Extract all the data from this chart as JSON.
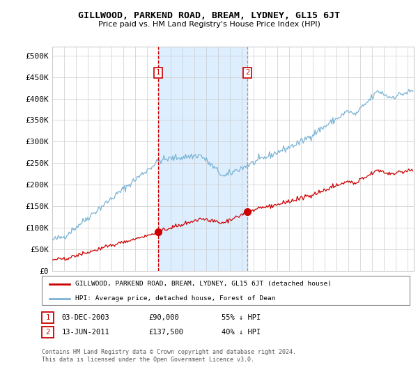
{
  "title": "GILLWOOD, PARKEND ROAD, BREAM, LYDNEY, GL15 6JT",
  "subtitle": "Price paid vs. HM Land Registry's House Price Index (HPI)",
  "ylabel_ticks": [
    "£0",
    "£50K",
    "£100K",
    "£150K",
    "£200K",
    "£250K",
    "£300K",
    "£350K",
    "£400K",
    "£450K",
    "£500K"
  ],
  "ytick_values": [
    0,
    50000,
    100000,
    150000,
    200000,
    250000,
    300000,
    350000,
    400000,
    450000,
    500000
  ],
  "ylim": [
    0,
    520000
  ],
  "xlim_start": 1995.0,
  "xlim_end": 2025.5,
  "transaction1_x": 2003.92,
  "transaction1_y": 90000,
  "transaction1_label": "1",
  "transaction1_date": "03-DEC-2003",
  "transaction1_price": "£90,000",
  "transaction1_hpi": "55% ↓ HPI",
  "transaction2_x": 2011.45,
  "transaction2_y": 137500,
  "transaction2_label": "2",
  "transaction2_date": "13-JUN-2011",
  "transaction2_price": "£137,500",
  "transaction2_hpi": "40% ↓ HPI",
  "hpi_line_color": "#7ab3d4",
  "price_line_color": "#cc0000",
  "background_color": "#ffffff",
  "shaded_region_color": "#ddeeff",
  "grid_color": "#cccccc",
  "vline1_color": "#cc0000",
  "vline2_color": "#999999",
  "legend_house_label": "GILLWOOD, PARKEND ROAD, BREAM, LYDNEY, GL15 6JT (detached house)",
  "legend_hpi_label": "HPI: Average price, detached house, Forest of Dean",
  "footnote": "Contains HM Land Registry data © Crown copyright and database right 2024.\nThis data is licensed under the Open Government Licence v3.0."
}
